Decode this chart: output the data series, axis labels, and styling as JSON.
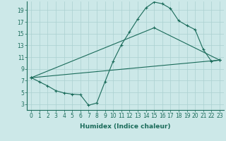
{
  "xlabel": "Humidex (Indice chaleur)",
  "bg_color": "#cce8e8",
  "line_color": "#1a6b5a",
  "xlim": [
    -0.5,
    23.5
  ],
  "ylim": [
    2.0,
    20.5
  ],
  "xticks": [
    0,
    1,
    2,
    3,
    4,
    5,
    6,
    7,
    8,
    9,
    10,
    11,
    12,
    13,
    14,
    15,
    16,
    17,
    18,
    19,
    20,
    21,
    22,
    23
  ],
  "yticks": [
    3,
    5,
    7,
    9,
    11,
    13,
    15,
    17,
    19
  ],
  "line1_x": [
    0,
    1,
    2,
    3,
    4,
    5,
    6,
    7,
    8,
    9,
    10,
    11,
    12,
    13,
    14,
    15,
    16,
    17,
    18,
    19,
    20,
    21,
    22,
    23
  ],
  "line1_y": [
    7.5,
    6.8,
    6.1,
    5.3,
    4.9,
    4.7,
    4.6,
    2.8,
    3.2,
    6.8,
    10.3,
    13.1,
    15.3,
    17.5,
    19.4,
    20.4,
    20.1,
    19.3,
    17.2,
    16.4,
    15.7,
    12.3,
    10.3,
    10.5
  ],
  "line2_x": [
    0,
    23
  ],
  "line2_y": [
    7.5,
    10.5
  ],
  "line3_x": [
    0,
    15,
    23
  ],
  "line3_y": [
    7.5,
    16.0,
    10.5
  ],
  "grid_color": "#aad0d0",
  "tick_fontsize": 5.5,
  "label_fontsize": 6.5
}
